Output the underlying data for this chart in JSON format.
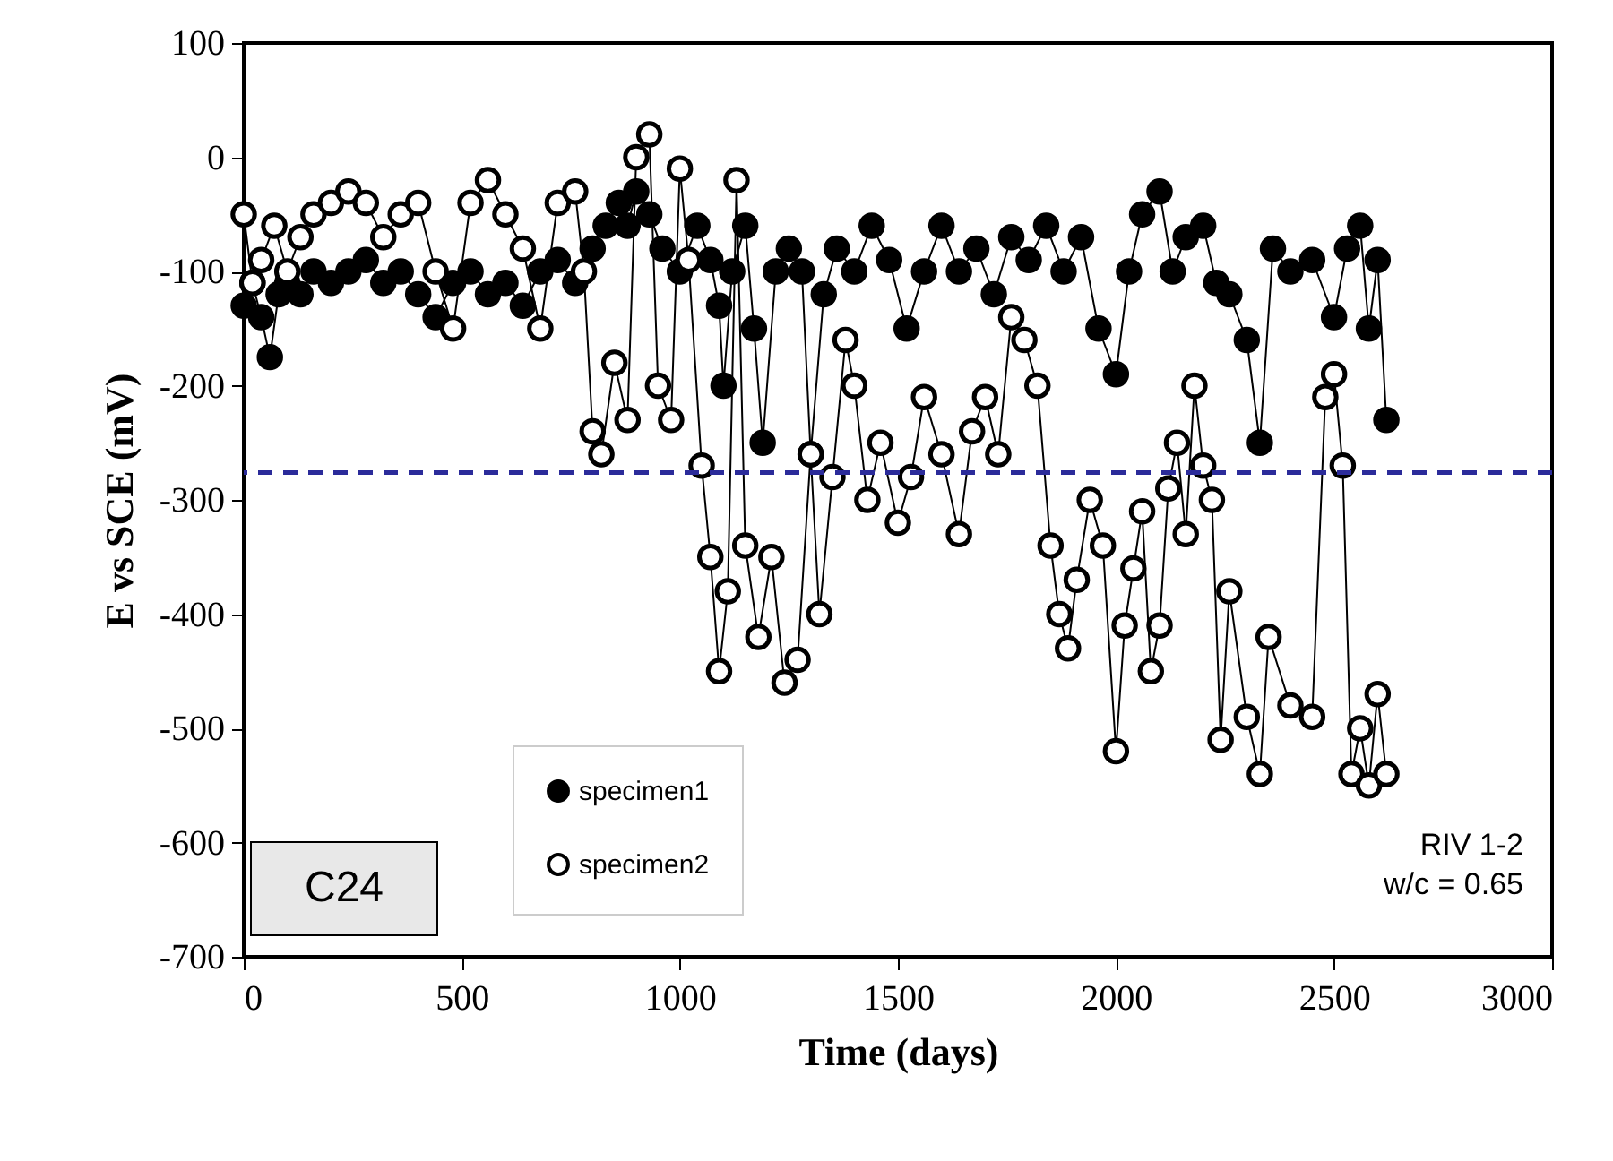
{
  "chart_data": {
    "type": "line",
    "xlabel": "Time (days)",
    "ylabel": "E vs SCE (mV)",
    "xlim": [
      0,
      3000
    ],
    "xticks": [
      0,
      500,
      1000,
      1500,
      2000,
      2500,
      3000
    ],
    "ylim": [
      -700,
      100
    ],
    "yticks": [
      -700,
      -600,
      -500,
      -400,
      -300,
      -200,
      -100,
      0,
      100
    ],
    "grid": false,
    "legend": "bottom left",
    "marker": "circle",
    "line_style": "solid",
    "ref_lines": [
      {
        "axis": "y",
        "value": -276,
        "color": "#2b2b9a",
        "line_style": "dashed"
      }
    ],
    "annotations": [
      "C24",
      "RIV 1-2",
      "w/c = 0.65"
    ],
    "series": [
      {
        "name": "specimen1",
        "color": "#000000",
        "x": [
          0,
          20,
          40,
          60,
          80,
          100,
          130,
          160,
          200,
          240,
          280,
          320,
          360,
          400,
          440,
          480,
          520,
          560,
          600,
          640,
          680,
          720,
          760,
          800,
          830,
          860,
          880,
          900,
          930,
          960,
          1000,
          1040,
          1070,
          1090,
          1100,
          1120,
          1150,
          1170,
          1190,
          1220,
          1250,
          1280,
          1300,
          1330,
          1360,
          1400,
          1440,
          1480,
          1520,
          1560,
          1600,
          1640,
          1680,
          1720,
          1760,
          1800,
          1840,
          1880,
          1920,
          1960,
          2000,
          2030,
          2060,
          2100,
          2130,
          2160,
          2200,
          2230,
          2260,
          2300,
          2330,
          2360,
          2400,
          2450,
          2500,
          2530,
          2560,
          2580,
          2600,
          2620
        ],
        "values": [
          -130,
          -110,
          -140,
          -175,
          -120,
          -110,
          -120,
          -100,
          -110,
          -100,
          -90,
          -110,
          -100,
          -120,
          -140,
          -110,
          -100,
          -120,
          -110,
          -130,
          -100,
          -90,
          -110,
          -80,
          -60,
          -40,
          -60,
          -30,
          -50,
          -80,
          -100,
          -60,
          -90,
          -130,
          -200,
          -100,
          -60,
          -150,
          -250,
          -100,
          -80,
          -100,
          -260,
          -120,
          -80,
          -100,
          -60,
          -90,
          -150,
          -100,
          -60,
          -100,
          -80,
          -120,
          -70,
          -90,
          -60,
          -100,
          -70,
          -150,
          -190,
          -100,
          -50,
          -30,
          -100,
          -70,
          -60,
          -110,
          -120,
          -160,
          -250,
          -80,
          -100,
          -90,
          -140,
          -80,
          -60,
          -150,
          -90,
          -230
        ]
      },
      {
        "name": "specimen2",
        "color": "#ffffff",
        "x": [
          0,
          20,
          40,
          70,
          100,
          130,
          160,
          200,
          240,
          280,
          320,
          360,
          400,
          440,
          480,
          520,
          560,
          600,
          640,
          680,
          720,
          760,
          780,
          800,
          820,
          850,
          880,
          900,
          930,
          950,
          980,
          1000,
          1020,
          1050,
          1070,
          1090,
          1110,
          1130,
          1150,
          1180,
          1210,
          1240,
          1270,
          1300,
          1320,
          1350,
          1380,
          1400,
          1430,
          1460,
          1500,
          1530,
          1560,
          1600,
          1640,
          1670,
          1700,
          1730,
          1760,
          1790,
          1820,
          1850,
          1870,
          1890,
          1910,
          1940,
          1970,
          2000,
          2020,
          2040,
          2060,
          2080,
          2100,
          2120,
          2140,
          2160,
          2180,
          2200,
          2220,
          2240,
          2260,
          2300,
          2330,
          2350,
          2400,
          2450,
          2480,
          2500,
          2520,
          2540,
          2560,
          2580,
          2600,
          2620
        ],
        "values": [
          -50,
          -110,
          -90,
          -60,
          -100,
          -70,
          -50,
          -40,
          -30,
          -40,
          -70,
          -50,
          -40,
          -100,
          -150,
          -40,
          -20,
          -50,
          -80,
          -150,
          -40,
          -30,
          -100,
          -240,
          -260,
          -180,
          -230,
          0,
          20,
          -200,
          -230,
          -10,
          -90,
          -270,
          -350,
          -450,
          -380,
          -20,
          -340,
          -420,
          -350,
          -460,
          -440,
          -260,
          -400,
          -280,
          -160,
          -200,
          -300,
          -250,
          -320,
          -280,
          -210,
          -260,
          -330,
          -240,
          -210,
          -260,
          -140,
          -160,
          -200,
          -340,
          -400,
          -430,
          -370,
          -300,
          -340,
          -520,
          -410,
          -360,
          -310,
          -450,
          -410,
          -290,
          -250,
          -330,
          -200,
          -270,
          -300,
          -510,
          -380,
          -490,
          -540,
          -420,
          -480,
          -490,
          -210,
          -190,
          -270,
          -540,
          -500,
          -550,
          -470,
          -540
        ]
      }
    ]
  }
}
